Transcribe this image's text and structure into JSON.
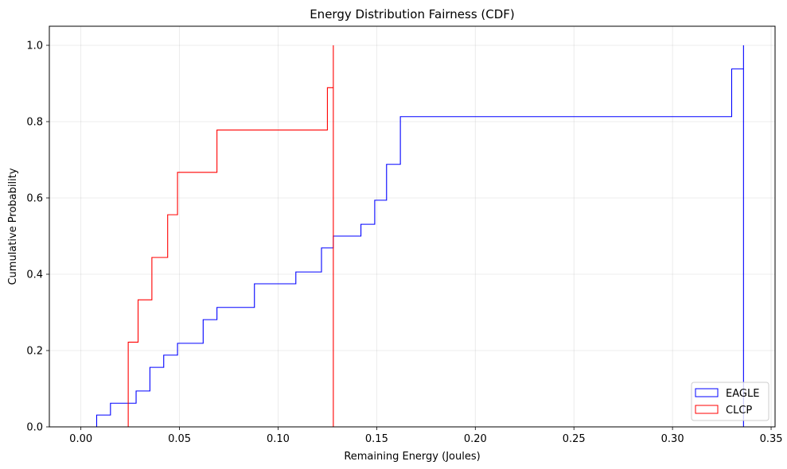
{
  "chart_data": {
    "type": "line",
    "title": "Energy Distribution Fairness (CDF)",
    "xlabel": "Remaining Energy (Joules)",
    "ylabel": "Cumulative Probability",
    "xlim": [
      -0.016,
      0.352
    ],
    "ylim": [
      0,
      1.05
    ],
    "xticks": [
      0.0,
      0.05,
      0.1,
      0.15,
      0.2,
      0.25,
      0.3,
      0.35
    ],
    "xtick_labels": [
      "0.00",
      "0.05",
      "0.10",
      "0.15",
      "0.20",
      "0.25",
      "0.30",
      "0.35"
    ],
    "yticks": [
      0.0,
      0.2,
      0.4,
      0.6,
      0.8,
      1.0
    ],
    "ytick_labels": [
      "0.0",
      "0.2",
      "0.4",
      "0.6",
      "0.8",
      "1.0"
    ],
    "grid": true,
    "legend_position": "lower-right",
    "series": [
      {
        "name": "EAGLE",
        "color": "#0000ff",
        "style": "step-histogram",
        "x": [
          0.002,
          0.008,
          0.015,
          0.028,
          0.035,
          0.042,
          0.049,
          0.062,
          0.069,
          0.088,
          0.109,
          0.122,
          0.128,
          0.142,
          0.149,
          0.155,
          0.162,
          0.33,
          0.336
        ],
        "y": [
          0.0,
          0.031,
          0.062,
          0.094,
          0.156,
          0.188,
          0.219,
          0.281,
          0.313,
          0.375,
          0.406,
          0.469,
          0.5,
          0.531,
          0.594,
          0.688,
          0.813,
          0.938,
          1.0
        ]
      },
      {
        "name": "CLCP",
        "color": "#ff0000",
        "style": "step-histogram",
        "x": [
          0.001,
          0.024,
          0.029,
          0.036,
          0.044,
          0.049,
          0.069,
          0.125,
          0.128
        ],
        "y": [
          0.0,
          0.222,
          0.333,
          0.444,
          0.556,
          0.667,
          0.778,
          0.889,
          1.0
        ]
      }
    ]
  }
}
